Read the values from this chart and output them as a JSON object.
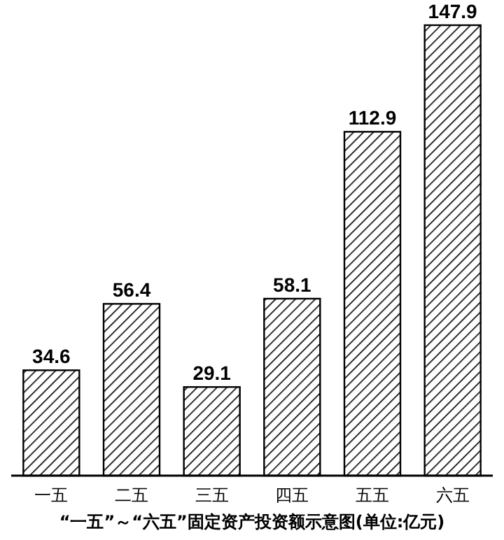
{
  "chart_data": {
    "type": "bar",
    "title": "“一五”～“六五”固定资产投资额示意图(单位:亿元)",
    "categories": [
      "一五",
      "二五",
      "三五",
      "四五",
      "五五",
      "六五"
    ],
    "values": [
      34.6,
      56.4,
      29.1,
      58.1,
      112.9,
      147.9
    ],
    "color": "#000000",
    "data_labels": true
  }
}
